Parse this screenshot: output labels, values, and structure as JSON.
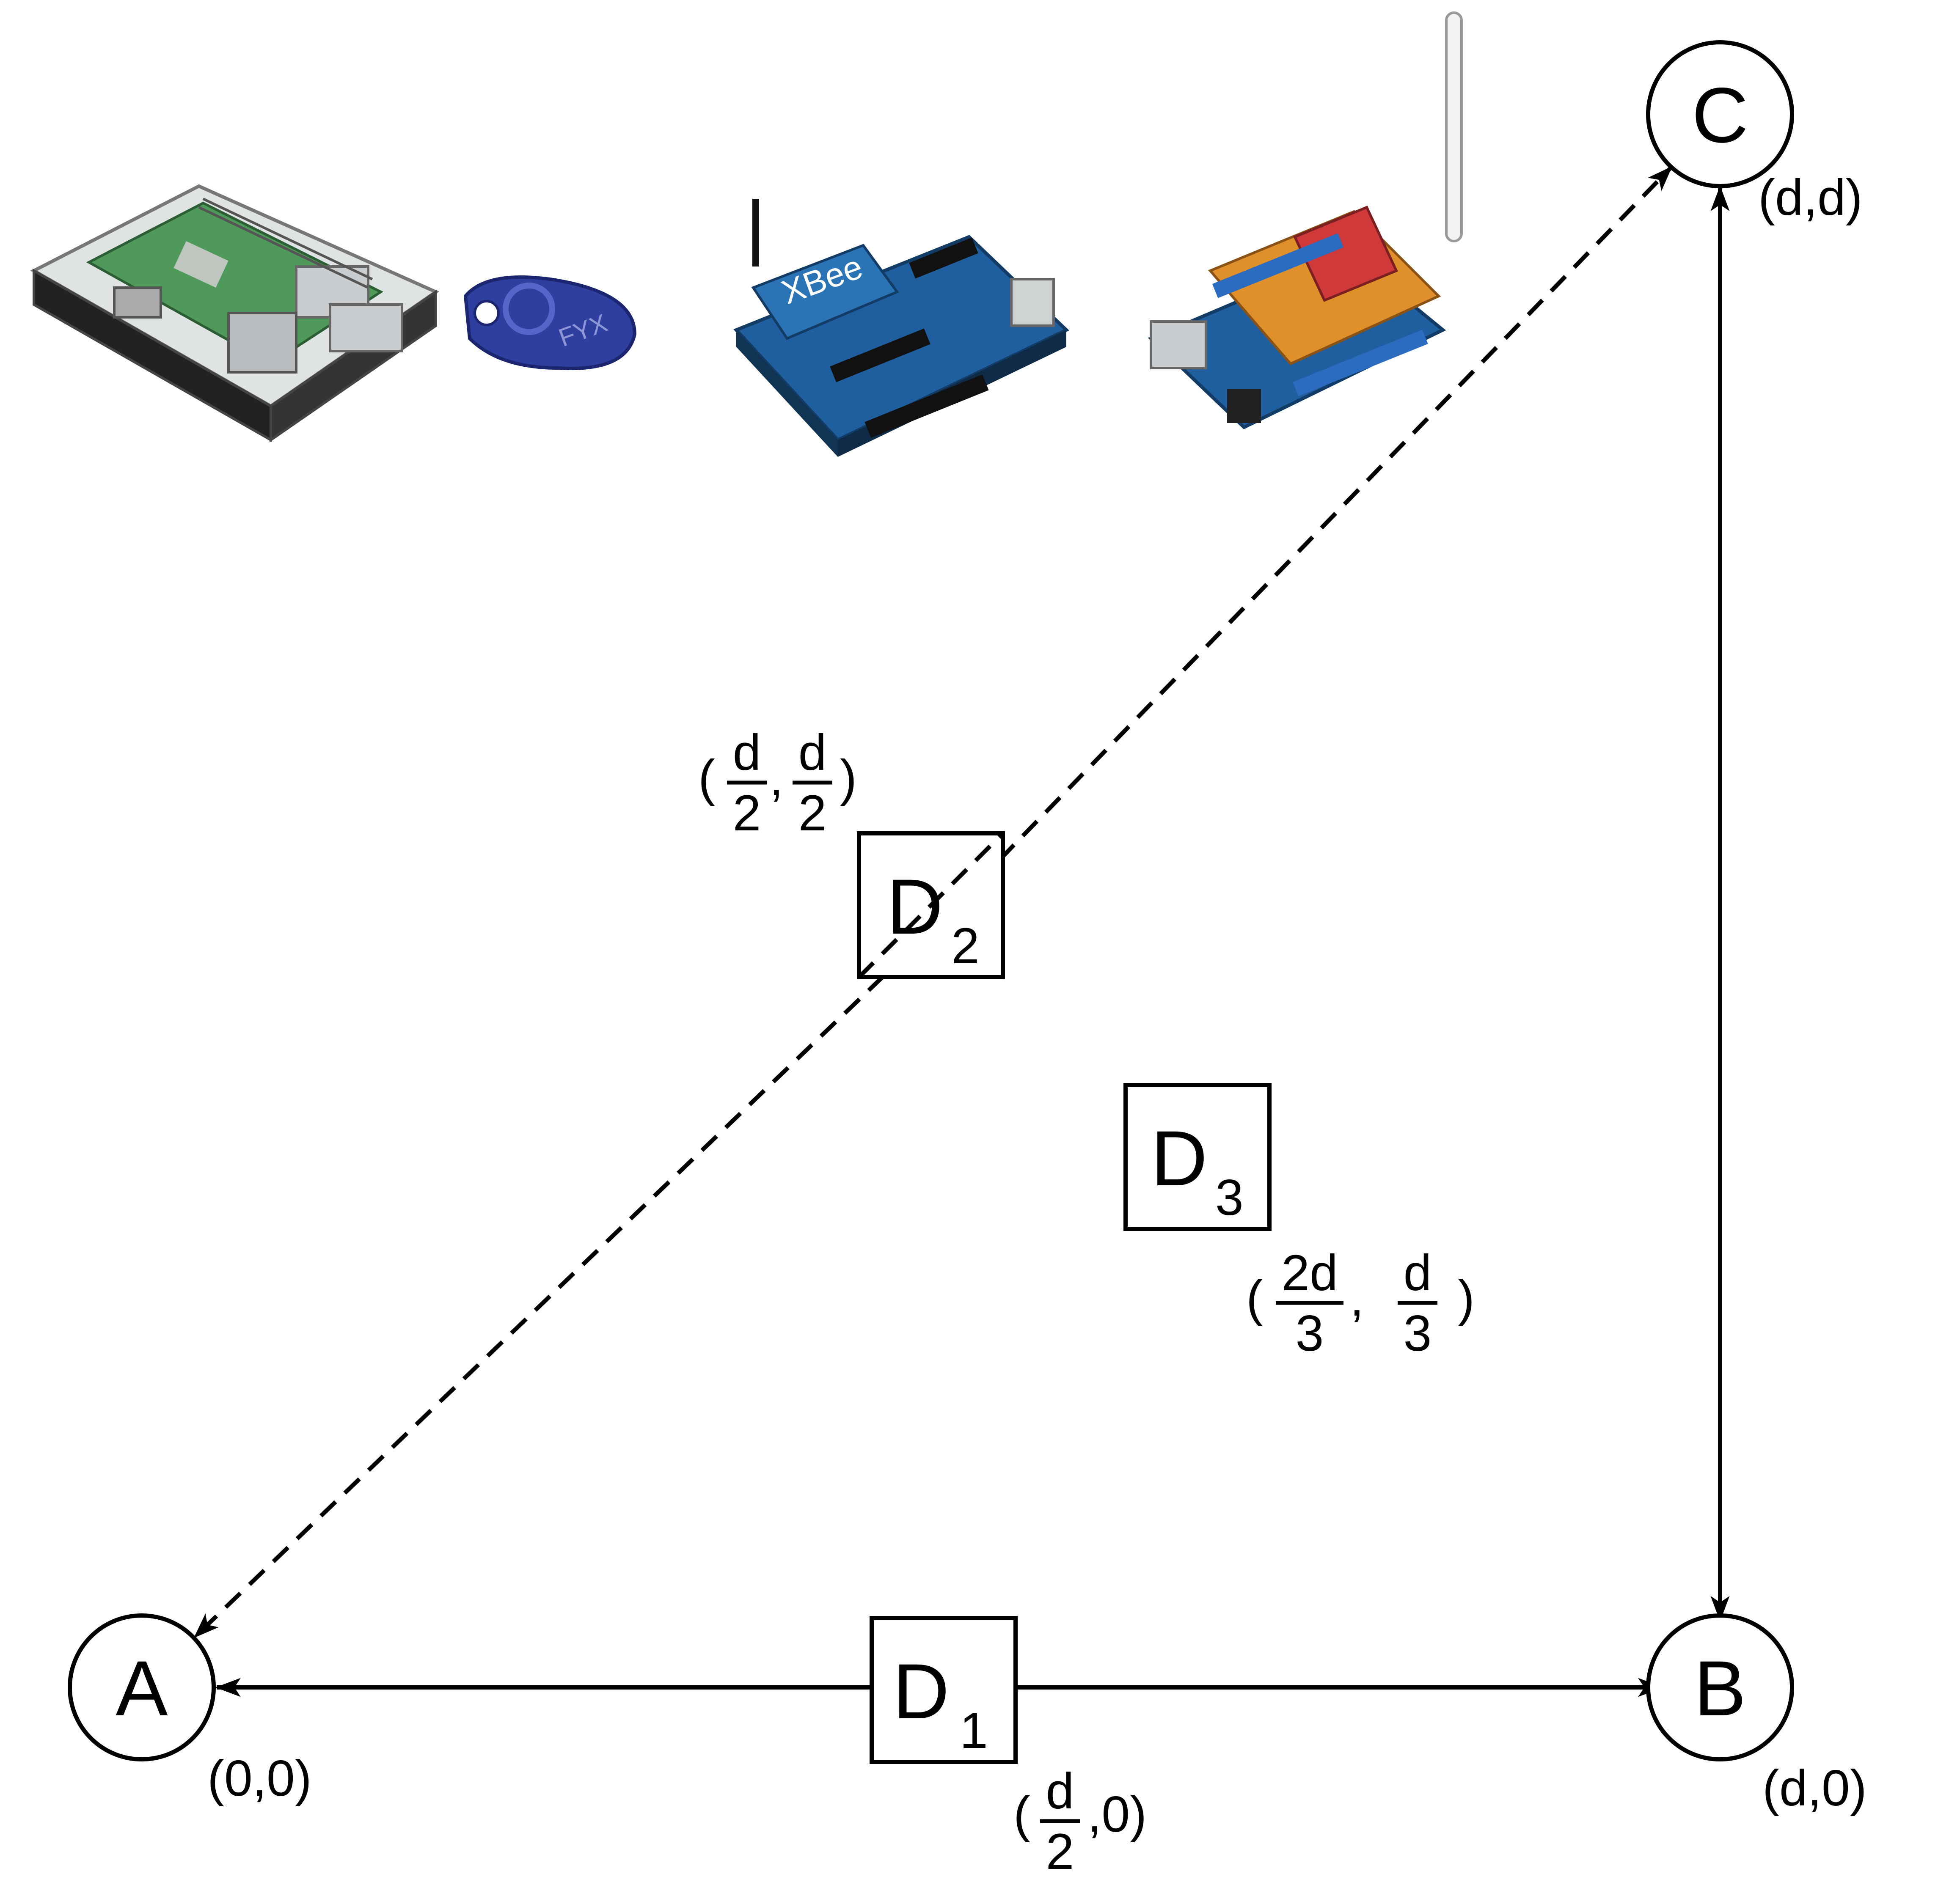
{
  "nodes": {
    "a": {
      "label": "A",
      "coord": "(0,0)"
    },
    "b": {
      "label": "B",
      "coord": "(d,0)"
    },
    "c": {
      "label": "C",
      "coord": "(d,d)"
    }
  },
  "devices": {
    "d1": {
      "main": "D",
      "sub": "1",
      "coord": {
        "open": "(",
        "num": "d",
        "den": "2",
        "rest": ",0)"
      }
    },
    "d2": {
      "main": "D",
      "sub": "2",
      "coord": {
        "open": "(",
        "num1": "d",
        "den1": "2",
        "sep": ",",
        "num2": "d",
        "den2": "2",
        "close": ")"
      }
    },
    "d3": {
      "main": "D",
      "sub": "3",
      "coord": {
        "open": "(",
        "num1": "2d",
        "den1": "3",
        "sep": ",",
        "num2": "d",
        "den2": "3",
        "close": ")"
      }
    }
  },
  "hardware": {
    "keyfob_text": "FYX",
    "xbee_text": "XBee"
  },
  "links": [
    {
      "from": "A",
      "to": "B",
      "style": "solid"
    },
    {
      "from": "B",
      "to": "C",
      "style": "solid"
    },
    {
      "from": "A",
      "to": "C",
      "style": "dashed"
    }
  ],
  "colors": {
    "line": "#000000",
    "keyfob": "#2f3fa0",
    "board_blue": "#1f5f9f",
    "shield_orange": "#e0902a",
    "shield_red": "#d0393a",
    "pcb_green": "#3b8a52"
  }
}
